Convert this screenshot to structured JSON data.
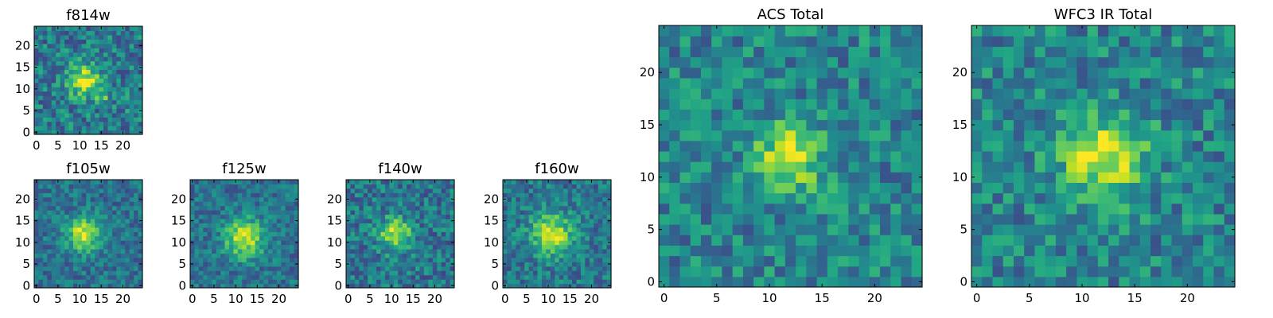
{
  "chart_data": [
    {
      "type": "heatmap",
      "title": "f814w",
      "colormap": "viridis",
      "grid_size": 25,
      "xlim": [
        -0.5,
        24.5
      ],
      "ylim": [
        -0.5,
        24.5
      ],
      "xticks": [
        0,
        5,
        10,
        15,
        20
      ],
      "yticks": [
        0,
        5,
        10,
        15,
        20
      ],
      "peaks": [
        {
          "x": 11,
          "y": 12,
          "amp": 0.55,
          "sigma": 2.6
        },
        {
          "x": 15,
          "y": 8,
          "amp": 0.25,
          "sigma": 1.2
        }
      ],
      "background": 0.42,
      "noise": 0.22,
      "seed": 11
    },
    {
      "type": "heatmap",
      "title": "f105w",
      "colormap": "viridis",
      "grid_size": 25,
      "xlim": [
        -0.5,
        24.5
      ],
      "ylim": [
        -0.5,
        24.5
      ],
      "xticks": [
        0,
        5,
        10,
        15,
        20
      ],
      "yticks": [
        0,
        5,
        10,
        15,
        20
      ],
      "peaks": [
        {
          "x": 11,
          "y": 12,
          "amp": 0.55,
          "sigma": 2.8
        }
      ],
      "background": 0.38,
      "noise": 0.16,
      "seed": 23
    },
    {
      "type": "heatmap",
      "title": "f125w",
      "colormap": "viridis",
      "grid_size": 25,
      "xlim": [
        -0.5,
        24.5
      ],
      "ylim": [
        -0.5,
        24.5
      ],
      "xticks": [
        0,
        5,
        10,
        15,
        20
      ],
      "yticks": [
        0,
        5,
        10,
        15,
        20
      ],
      "peaks": [
        {
          "x": 12,
          "y": 11,
          "amp": 0.55,
          "sigma": 3.2
        }
      ],
      "background": 0.38,
      "noise": 0.16,
      "seed": 37
    },
    {
      "type": "heatmap",
      "title": "f140w",
      "colormap": "viridis",
      "grid_size": 25,
      "xlim": [
        -0.5,
        24.5
      ],
      "ylim": [
        -0.5,
        24.5
      ],
      "xticks": [
        0,
        5,
        10,
        15,
        20
      ],
      "yticks": [
        0,
        5,
        10,
        15,
        20
      ],
      "peaks": [
        {
          "x": 11,
          "y": 12,
          "amp": 0.5,
          "sigma": 2.6
        }
      ],
      "background": 0.4,
      "noise": 0.2,
      "seed": 51
    },
    {
      "type": "heatmap",
      "title": "f160w",
      "colormap": "viridis",
      "grid_size": 25,
      "xlim": [
        -0.5,
        24.5
      ],
      "ylim": [
        -0.5,
        24.5
      ],
      "xticks": [
        0,
        5,
        10,
        15,
        20
      ],
      "yticks": [
        0,
        5,
        10,
        15,
        20
      ],
      "peaks": [
        {
          "x": 11,
          "y": 12,
          "amp": 0.5,
          "sigma": 3.4
        }
      ],
      "background": 0.4,
      "noise": 0.18,
      "seed": 67
    },
    {
      "type": "heatmap",
      "title": "ACS Total",
      "colormap": "viridis",
      "grid_size": 25,
      "xlim": [
        -0.5,
        24.5
      ],
      "ylim": [
        -0.5,
        24.5
      ],
      "xticks": [
        0,
        5,
        10,
        15,
        20
      ],
      "yticks": [
        0,
        5,
        10,
        15,
        20
      ],
      "peaks": [
        {
          "x": 12,
          "y": 12,
          "amp": 0.5,
          "sigma": 2.2
        },
        {
          "x": 16,
          "y": 8,
          "amp": 0.3,
          "sigma": 1.0
        }
      ],
      "background": 0.45,
      "noise": 0.2,
      "seed": 83
    },
    {
      "type": "heatmap",
      "title": "WFC3 IR Total",
      "colormap": "viridis",
      "grid_size": 25,
      "xlim": [
        -0.5,
        24.5
      ],
      "ylim": [
        -0.5,
        24.5
      ],
      "xticks": [
        0,
        5,
        10,
        15,
        20
      ],
      "yticks": [
        0,
        5,
        10,
        15,
        20
      ],
      "peaks": [
        {
          "x": 12,
          "y": 12,
          "amp": 0.5,
          "sigma": 2.8
        }
      ],
      "background": 0.45,
      "noise": 0.2,
      "seed": 97
    }
  ]
}
